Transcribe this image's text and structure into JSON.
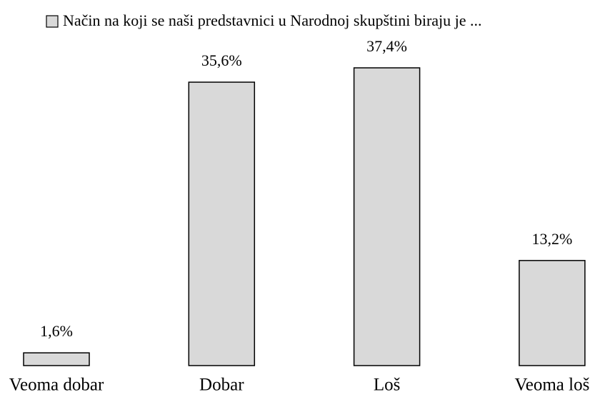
{
  "chart_data": {
    "type": "bar",
    "categories": [
      "Veoma dobar",
      "Dobar",
      "Loš",
      "Veoma loš"
    ],
    "series": [
      {
        "name": "Način na koji se naši predstavnici u Narodnoj skupštini biraju je ...",
        "color": "#d9d9d9",
        "values": [
          1.6,
          35.6,
          37.4,
          13.2
        ],
        "value_labels": [
          "1,6%",
          "35,6%",
          "37,4%",
          "13,2%"
        ]
      }
    ],
    "legend": "top"
  }
}
